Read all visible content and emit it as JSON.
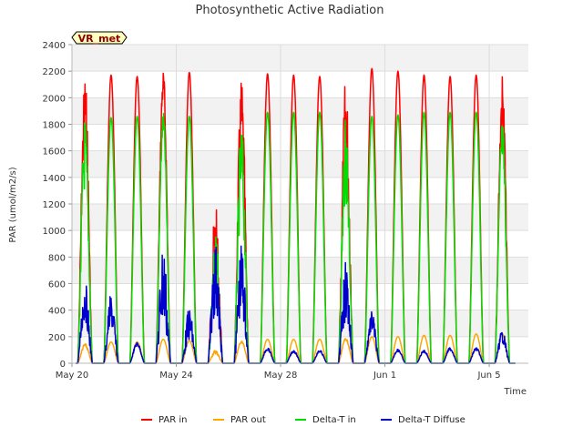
{
  "chart_data": {
    "type": "line",
    "title": "Photosynthetic Active Radiation",
    "xlabel": "Time",
    "ylabel": "PAR (umol/m2/s)",
    "site_label": "VR_met",
    "x_unit": "days since May 20",
    "xlim": [
      0,
      17.5
    ],
    "ylim": [
      0,
      2400
    ],
    "y_ticks": [
      0,
      200,
      400,
      600,
      800,
      1000,
      1200,
      1400,
      1600,
      1800,
      2000,
      2200,
      2400
    ],
    "x_ticks": [
      {
        "value": 0,
        "label": "May 20"
      },
      {
        "value": 4,
        "label": "May 24"
      },
      {
        "value": 8,
        "label": "May 28"
      },
      {
        "value": 12,
        "label": "Jun 1"
      },
      {
        "value": 16,
        "label": "Jun 5"
      }
    ],
    "days": [
      0,
      1,
      2,
      3,
      4,
      5,
      6,
      7,
      8,
      9,
      10,
      11,
      12,
      13,
      14,
      15,
      16
    ],
    "series": [
      {
        "name": "PAR in",
        "color": "#ff0000",
        "daily_peak": [
          2190,
          2170,
          2160,
          2220,
          2190,
          1200,
          2150,
          2180,
          2170,
          2160,
          2180,
          2220,
          2200,
          2170,
          2160,
          2170,
          2180
        ],
        "noise": [
          0.25,
          0.05,
          0.05,
          0.12,
          0.05,
          0.55,
          0.3,
          0.05,
          0.05,
          0.05,
          0.35,
          0.05,
          0.05,
          0.05,
          0.05,
          0.05,
          0.2
        ]
      },
      {
        "name": "PAR out",
        "color": "#ffa500",
        "daily_peak": [
          150,
          160,
          160,
          180,
          170,
          100,
          170,
          180,
          180,
          180,
          190,
          200,
          200,
          210,
          210,
          220,
          220
        ],
        "noise": [
          0.2,
          0.05,
          0.05,
          0.05,
          0.05,
          0.3,
          0.1,
          0.05,
          0.05,
          0.05,
          0.1,
          0.05,
          0.05,
          0.05,
          0.05,
          0.05,
          0.05
        ]
      },
      {
        "name": "Delta-T in",
        "color": "#00dd00",
        "daily_peak": [
          1860,
          1850,
          1860,
          1900,
          1860,
          1000,
          1800,
          1890,
          1890,
          1890,
          1860,
          1860,
          1870,
          1890,
          1890,
          1890,
          1830
        ],
        "noise": [
          0.3,
          0.05,
          0.05,
          0.1,
          0.05,
          0.5,
          0.35,
          0.05,
          0.05,
          0.05,
          0.35,
          0.05,
          0.05,
          0.05,
          0.05,
          0.05,
          0.2
        ]
      },
      {
        "name": "Delta-T Diffuse",
        "color": "#0000cc",
        "daily_peak": [
          620,
          520,
          160,
          930,
          420,
          920,
          900,
          120,
          100,
          100,
          770,
          390,
          110,
          100,
          120,
          120,
          250
        ],
        "noise": [
          0.5,
          0.5,
          0.2,
          0.7,
          0.6,
          0.6,
          0.6,
          0.2,
          0.2,
          0.2,
          0.6,
          0.4,
          0.2,
          0.2,
          0.2,
          0.2,
          0.4
        ]
      }
    ],
    "grid": true,
    "legend_position": "bottom-center"
  }
}
